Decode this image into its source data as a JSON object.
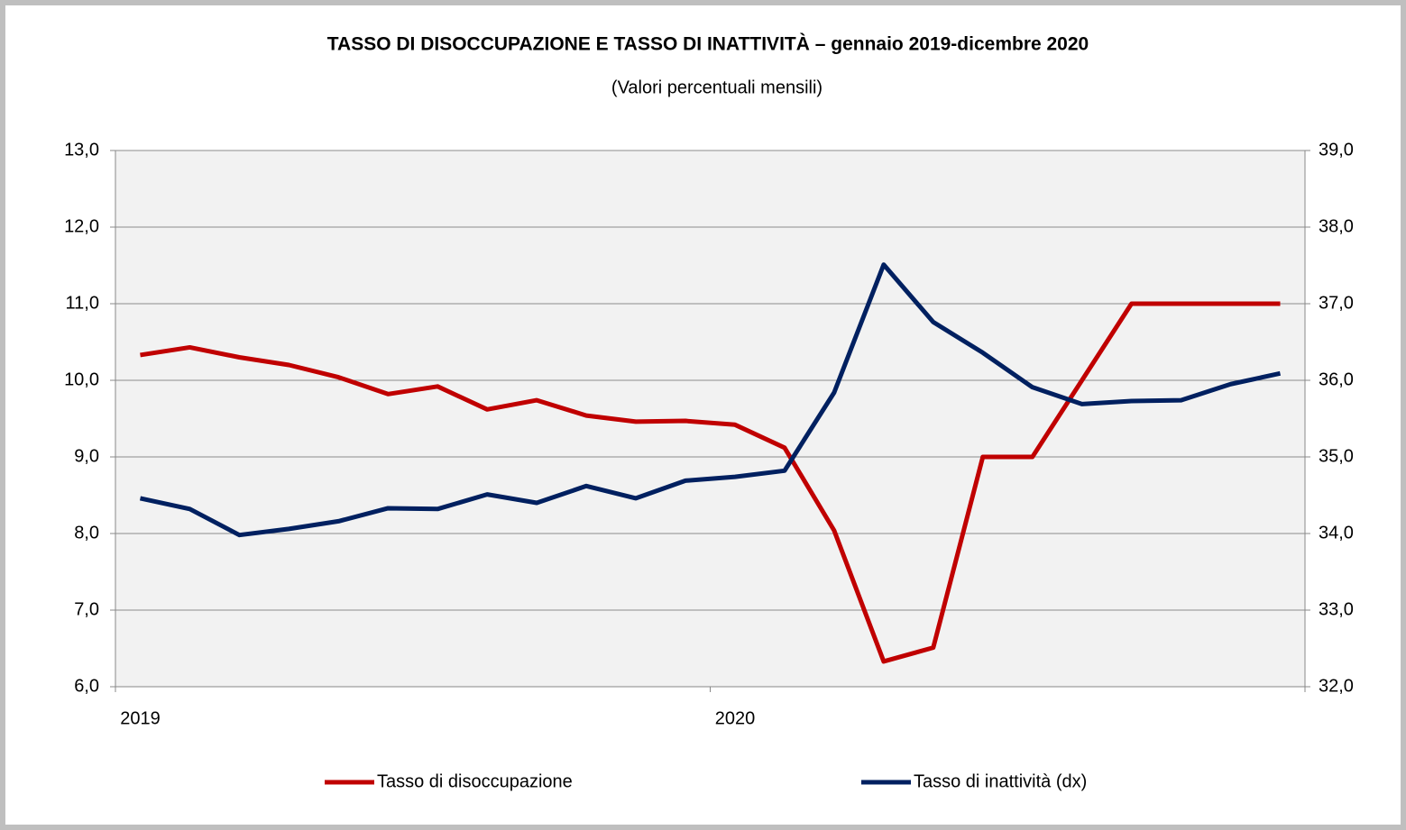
{
  "chart_data": {
    "type": "line",
    "title": "TASSO DI DISOCCUPAZIONE E TASSO DI INATTIVITÀ – gennaio 2019-dicembre 2020",
    "subtitle": "(Valori percentuali mensili)",
    "categories": [
      "2019",
      null,
      null,
      null,
      null,
      null,
      null,
      null,
      null,
      null,
      null,
      null,
      "2020",
      null,
      null,
      null,
      null,
      null,
      null,
      null,
      null,
      null,
      null,
      null
    ],
    "series": [
      {
        "name": "Tasso di disoccupazione",
        "color": "#c00000",
        "axis": "y",
        "values": [
          10.33,
          10.43,
          10.3,
          10.2,
          10.04,
          9.82,
          9.92,
          9.62,
          9.74,
          9.54,
          9.46,
          9.47,
          9.42,
          9.12,
          8.04,
          6.33,
          6.51,
          9.0,
          9.0,
          10.0,
          11.0,
          11.0,
          11.0,
          11.0
        ]
      },
      {
        "name": "Tasso di inattività (dx)",
        "color": "#002060",
        "axis": "y2",
        "values": [
          34.46,
          34.32,
          33.98,
          34.06,
          34.16,
          34.33,
          34.32,
          34.51,
          34.4,
          34.62,
          34.46,
          34.69,
          34.74,
          34.82,
          35.84,
          37.51,
          36.76,
          36.36,
          35.91,
          35.69,
          35.73,
          35.74,
          35.95,
          36.09
        ]
      }
    ],
    "ylim": [
      6,
      13
    ],
    "yticks": [
      {
        "value": 6,
        "label": "6,0"
      },
      {
        "value": 7,
        "label": "7,0"
      },
      {
        "value": 8,
        "label": "8,0"
      },
      {
        "value": 9,
        "label": "9,0"
      },
      {
        "value": 10,
        "label": "10,0"
      },
      {
        "value": 11,
        "label": "11,0"
      },
      {
        "value": 12,
        "label": "12,0"
      },
      {
        "value": 13,
        "label": "13,0"
      }
    ],
    "y2lim": [
      32,
      39
    ],
    "y2ticks": [
      {
        "value": 32,
        "label": "32,0"
      },
      {
        "value": 33,
        "label": "33,0"
      },
      {
        "value": 34,
        "label": "34,0"
      },
      {
        "value": 35,
        "label": "35,0"
      },
      {
        "value": 36,
        "label": "36,0"
      },
      {
        "value": 37,
        "label": "37,0"
      },
      {
        "value": 38,
        "label": "38,0"
      },
      {
        "value": 39,
        "label": "39,0"
      }
    ],
    "grid": true,
    "legend": "bottom"
  }
}
